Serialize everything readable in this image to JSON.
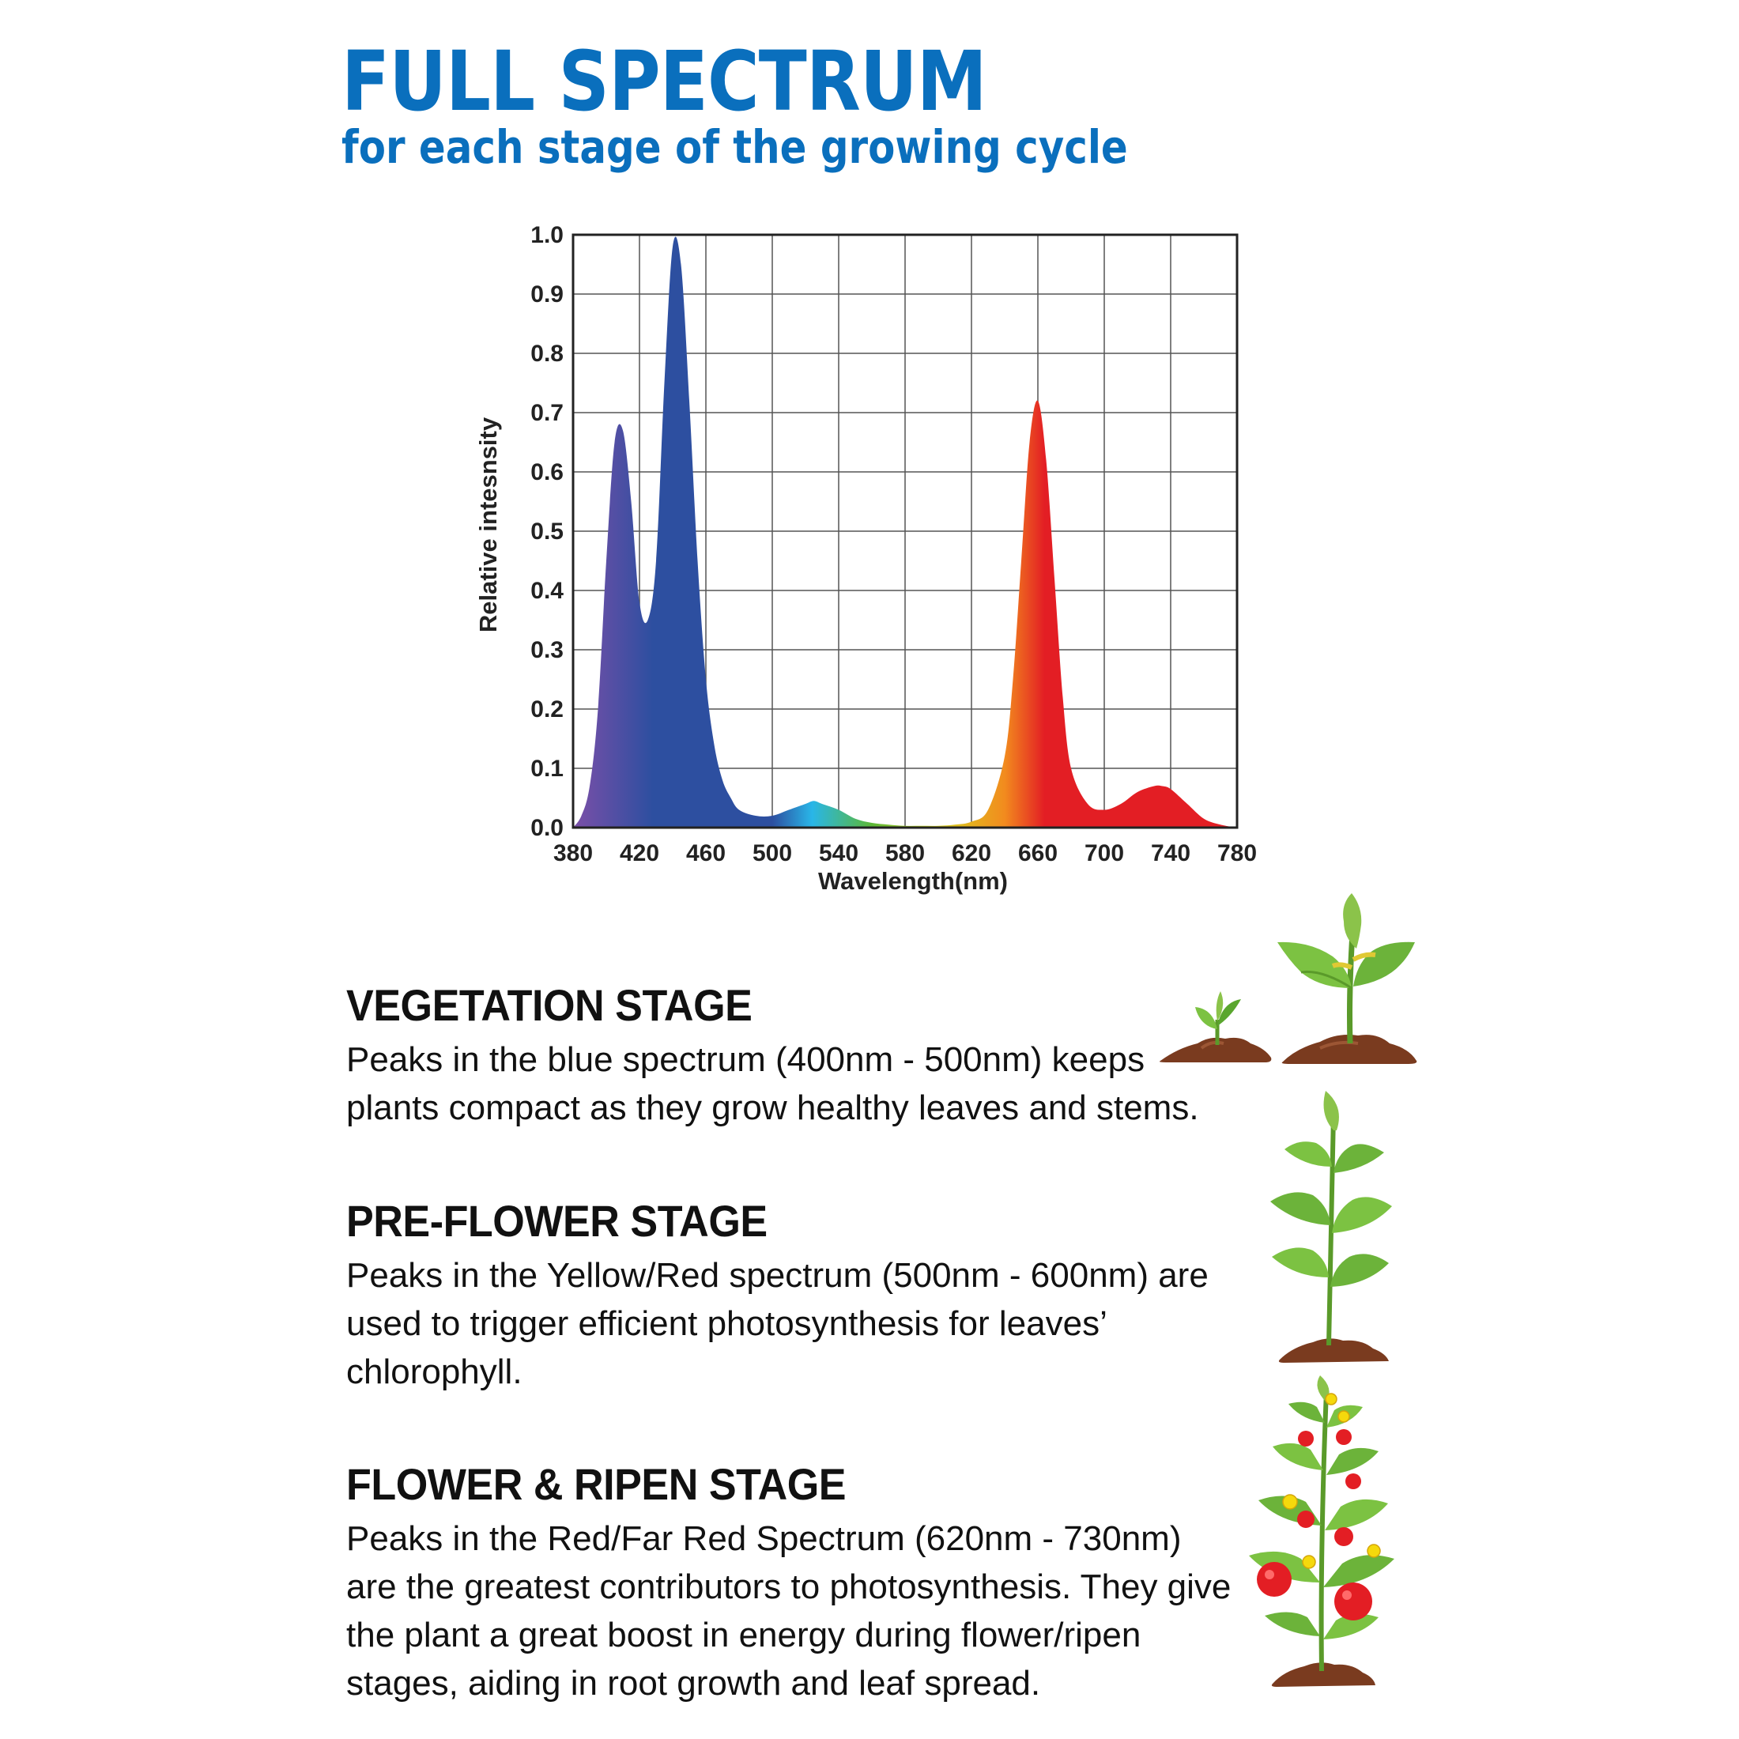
{
  "header": {
    "title": "FULL SPECTRUM",
    "subtitle": "for each stage of the growing cycle"
  },
  "chart_data": {
    "type": "area",
    "xlabel": "Wavelength(nm)",
    "ylabel": "Relative intesnsity",
    "xlim": [
      380,
      780
    ],
    "ylim": [
      0.0,
      1.0
    ],
    "x_ticks": [
      "380",
      "420",
      "460",
      "500",
      "540",
      "580",
      "620",
      "660",
      "700",
      "740",
      "780"
    ],
    "y_ticks": [
      "1.0",
      "0.9",
      "0.8",
      "0.7",
      "0.6",
      "0.5",
      "0.4",
      "0.3",
      "0.2",
      "0.1",
      "0.0"
    ],
    "grid": true,
    "x": [
      380,
      385,
      390,
      395,
      400,
      405,
      410,
      415,
      420,
      425,
      430,
      435,
      440,
      445,
      450,
      455,
      460,
      465,
      470,
      475,
      480,
      490,
      500,
      510,
      520,
      525,
      530,
      540,
      550,
      560,
      570,
      580,
      590,
      600,
      610,
      620,
      630,
      640,
      645,
      650,
      655,
      660,
      665,
      670,
      675,
      680,
      690,
      700,
      710,
      720,
      730,
      735,
      740,
      750,
      760,
      770,
      780
    ],
    "y": [
      0.0,
      0.02,
      0.07,
      0.2,
      0.45,
      0.65,
      0.67,
      0.55,
      0.38,
      0.35,
      0.45,
      0.75,
      0.98,
      0.95,
      0.72,
      0.45,
      0.25,
      0.14,
      0.08,
      0.05,
      0.03,
      0.02,
      0.02,
      0.03,
      0.04,
      0.045,
      0.04,
      0.03,
      0.015,
      0.008,
      0.005,
      0.003,
      0.003,
      0.003,
      0.005,
      0.01,
      0.03,
      0.12,
      0.25,
      0.45,
      0.65,
      0.72,
      0.62,
      0.42,
      0.22,
      0.1,
      0.04,
      0.03,
      0.04,
      0.06,
      0.07,
      0.07,
      0.065,
      0.04,
      0.015,
      0.005,
      0.0
    ],
    "colors": {
      "violet": "#7b4fa8",
      "blue": "#2d4fa0",
      "cyan": "#29b6e8",
      "green": "#5cb837",
      "yellow": "#d8d31e",
      "orange": "#f28b1e",
      "red": "#e31e24"
    }
  },
  "stages": [
    {
      "title": "VEGETATION STAGE",
      "text": "Peaks in the blue spectrum (400nm - 500nm) keeps plants compact as they grow healthy leaves and stems.",
      "icon": "seedling-icon"
    },
    {
      "title": "PRE-FLOWER STAGE",
      "text": "Peaks in the Yellow/Red spectrum (500nm - 600nm) are used to trigger efficient photosynthesis for leaves’ chlorophyll.",
      "icon": "young-plant-icon"
    },
    {
      "title": "FLOWER & RIPEN STAGE",
      "text": "Peaks in the Red/Far Red Spectrum (620nm - 730nm) are the greatest contributors to photosynthesis. They give the plant a great boost in energy during flower/ripen stages, aiding in root growth and leaf spread.",
      "icon": "tomato-plant-icon"
    }
  ]
}
